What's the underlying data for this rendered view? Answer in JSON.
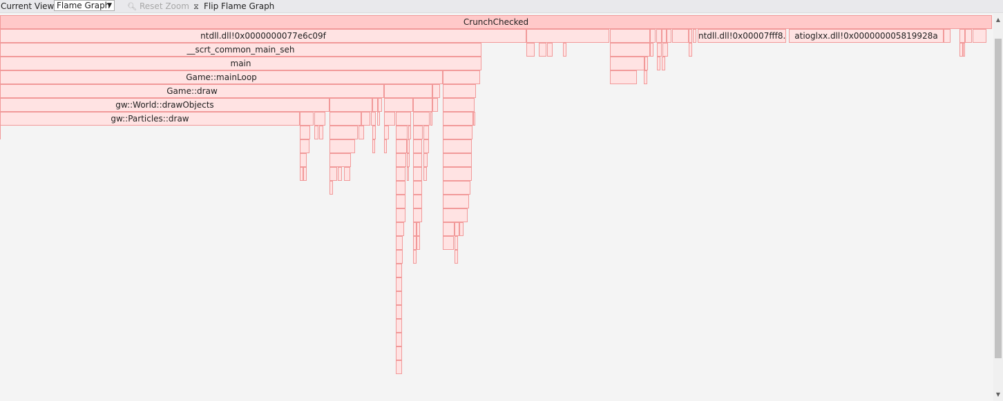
{
  "toolbar": {
    "view_label": "Current View:",
    "view_value": "Flame Graph",
    "reset_zoom_label": "Reset Zoom",
    "flip_label": "Flip Flame Graph"
  },
  "colors": {
    "frame_fill": "#ffe3e3",
    "frame_border": "#f19999",
    "root_fill": "#ffc9c9",
    "background": "#f4f4f4"
  },
  "frames": {
    "root": "CrunchChecked",
    "ntdll_main": "ntdll.dll!0x0000000077e6c09f",
    "ntdll_second": "ntdll.dll!0x00007fff8...",
    "atioglxx": "atioglxx.dll!0x000000005819928a",
    "scrt": "__scrt_common_main_seh",
    "main": "main",
    "main_loop": "Game::mainLoop",
    "draw": "Game::draw",
    "draw_objects": "gw::World::drawObjects",
    "particles_draw": "gw::Particles::draw"
  }
}
